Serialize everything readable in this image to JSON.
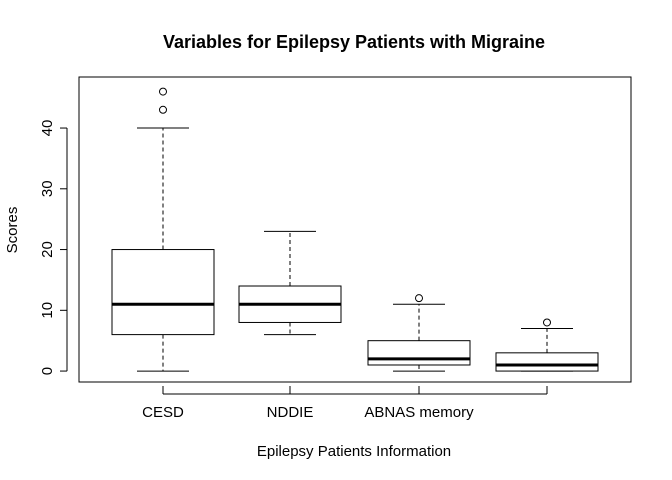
{
  "chart_data": {
    "type": "box",
    "title": "Variables for Epilepsy Patients with Migraine",
    "xlabel": "Epilepsy Patients Information",
    "ylabel": "Scores",
    "ylim": [
      -1.8,
      48.4
    ],
    "y_ticks": [
      0,
      10,
      20,
      30,
      40
    ],
    "categories": [
      "CESD",
      "NDDIE",
      "ABNAS memory",
      ""
    ],
    "boxes": [
      {
        "label": "CESD",
        "min": 0,
        "q1": 6,
        "median": 11,
        "q3": 20,
        "max": 40,
        "outliers": [
          43,
          46
        ]
      },
      {
        "label": "NDDIE",
        "min": 6,
        "q1": 8,
        "median": 11,
        "q3": 14,
        "max": 23,
        "outliers": []
      },
      {
        "label": "ABNAS memory",
        "min": 0,
        "q1": 1,
        "median": 2,
        "q3": 5,
        "max": 11,
        "outliers": [
          12
        ]
      },
      {
        "label": "",
        "min": 0,
        "q1": 0,
        "median": 1,
        "q3": 3,
        "max": 7,
        "outliers": [
          8
        ]
      }
    ],
    "grid": false,
    "legend": "none"
  }
}
